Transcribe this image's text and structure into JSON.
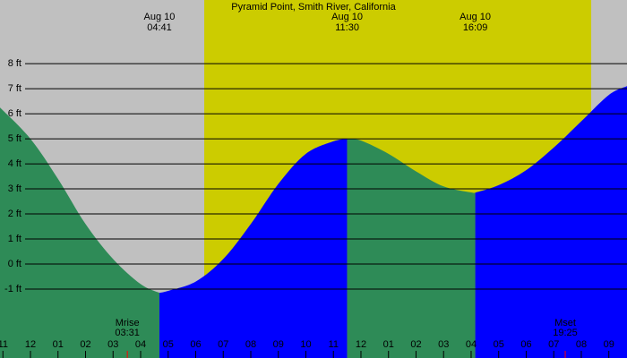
{
  "chart_data": {
    "type": "area",
    "title": "Pyramid Point, Smith River, California",
    "xlim": [
      -1.106,
      21.66
    ],
    "ylim": [
      -3.75,
      10.54
    ],
    "yticks": [
      {
        "value": 8,
        "label": "8 ft"
      },
      {
        "value": 7,
        "label": "7 ft"
      },
      {
        "value": 6,
        "label": "6 ft"
      },
      {
        "value": 5,
        "label": "5 ft"
      },
      {
        "value": 4,
        "label": "4 ft"
      },
      {
        "value": 3,
        "label": "3 ft"
      },
      {
        "value": 2,
        "label": "2 ft"
      },
      {
        "value": 1,
        "label": "1 ft"
      },
      {
        "value": 0,
        "label": "0 ft"
      },
      {
        "value": -1,
        "label": "-1 ft"
      }
    ],
    "xticks": [
      {
        "value": -1,
        "label": "11"
      },
      {
        "value": 0,
        "label": "12"
      },
      {
        "value": 1,
        "label": "01"
      },
      {
        "value": 2,
        "label": "02"
      },
      {
        "value": 3,
        "label": "03"
      },
      {
        "value": 4,
        "label": "04"
      },
      {
        "value": 5,
        "label": "05"
      },
      {
        "value": 6,
        "label": "06"
      },
      {
        "value": 7,
        "label": "07"
      },
      {
        "value": 8,
        "label": "08"
      },
      {
        "value": 9,
        "label": "09"
      },
      {
        "value": 10,
        "label": "10"
      },
      {
        "value": 11,
        "label": "11"
      },
      {
        "value": 12,
        "label": "12"
      },
      {
        "value": 13,
        "label": "01"
      },
      {
        "value": 14,
        "label": "02"
      },
      {
        "value": 15,
        "label": "03"
      },
      {
        "value": 16,
        "label": "04"
      },
      {
        "value": 17,
        "label": "05"
      },
      {
        "value": 18,
        "label": "06"
      },
      {
        "value": 19,
        "label": "07"
      },
      {
        "value": 20,
        "label": "08"
      },
      {
        "value": 21,
        "label": "09"
      }
    ],
    "daylight": [
      6.31,
      20.36
    ],
    "daylight_color": "#cccc00",
    "series": [
      {
        "color": "#2e8b57",
        "x": [
          -1.106,
          0,
          1,
          2,
          3,
          4,
          4.683
        ],
        "values": [
          6.25,
          5.0,
          3.4,
          1.6,
          0.2,
          -0.8,
          -1.15
        ]
      },
      {
        "color": "#0000ff",
        "x": [
          4.683,
          5,
          6,
          7,
          8,
          9,
          10,
          11,
          11.5
        ],
        "values": [
          -1.15,
          -1.07,
          -0.7,
          0.2,
          1.6,
          3.2,
          4.4,
          4.9,
          5.0
        ]
      },
      {
        "color": "#2e8b57",
        "x": [
          11.5,
          12,
          13,
          14,
          15,
          16,
          16.15
        ],
        "values": [
          5.0,
          4.93,
          4.4,
          3.7,
          3.1,
          2.86,
          2.85
        ]
      },
      {
        "color": "#0000ff",
        "x": [
          16.15,
          17,
          18,
          19,
          20,
          21,
          21.66
        ],
        "values": [
          2.85,
          3.15,
          3.75,
          4.65,
          5.7,
          6.75,
          7.1
        ]
      }
    ],
    "events": [
      {
        "date": "Aug 10",
        "time": "04:41",
        "x": 4.683
      },
      {
        "date": "Aug 10",
        "time": "11:30",
        "x": 11.5
      },
      {
        "date": "Aug 10",
        "time": "16:09",
        "x": 16.15
      }
    ],
    "moon": [
      {
        "label": "Mrise",
        "time": "03:31",
        "x": 3.517
      },
      {
        "label": "Mset",
        "time": "19:25",
        "x": 19.417
      }
    ]
  }
}
